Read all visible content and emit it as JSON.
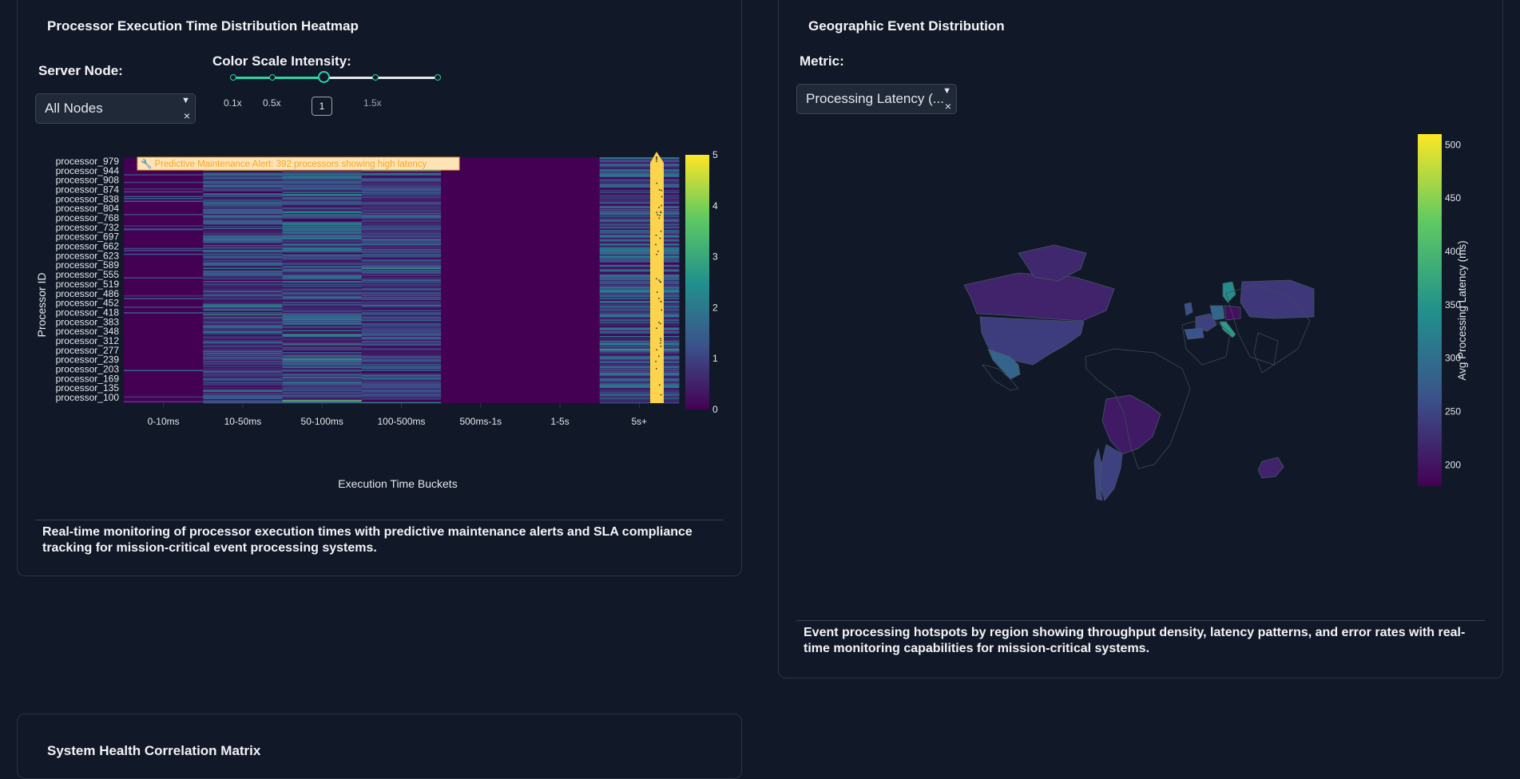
{
  "heatmap_panel": {
    "title": "Processor Execution Time Distribution Heatmap",
    "server_node_label": "Server Node:",
    "server_node_value": "All Nodes",
    "color_scale_label": "Color Scale Intensity:",
    "slider_marks": [
      "0.1x",
      "0.5x",
      "1.5x"
    ],
    "slider_value": "1",
    "alert_text": "🔧 Predictive Maintenance Alert: 392 processors showing high latency",
    "description": "Real-time monitoring of processor execution times with predictive maintenance alerts and SLA compliance tracking for mission-critical event processing systems."
  },
  "geo_panel": {
    "title": "Geographic Event Distribution",
    "metric_label": "Metric:",
    "metric_value": "Processing Latency (...",
    "description": "Event processing hotspots by region showing throughput density, latency patterns, and error rates with real-time monitoring capabilities for mission-critical systems."
  },
  "correlation_panel": {
    "title": "System Health Correlation Matrix"
  },
  "chart_data": [
    {
      "type": "heatmap",
      "xlabel": "Execution Time Buckets",
      "ylabel": "Processor ID",
      "categories": [
        "0-10ms",
        "10-50ms",
        "50-100ms",
        "100-500ms",
        "500ms-1s",
        "1-5s",
        "5s+"
      ],
      "y_tick_labels": [
        "processor_979",
        "processor_944",
        "processor_908",
        "processor_874",
        "processor_838",
        "processor_804",
        "processor_768",
        "processor_732",
        "processor_697",
        "processor_662",
        "processor_623",
        "processor_589",
        "processor_555",
        "processor_519",
        "processor_486",
        "processor_452",
        "processor_418",
        "processor_383",
        "processor_348",
        "processor_312",
        "processor_277",
        "processor_239",
        "processor_203",
        "processor_169",
        "processor_135",
        "processor_100"
      ],
      "colorbar": {
        "min": 0,
        "max": 5,
        "ticks": [
          "5",
          "4",
          "3",
          "2",
          "1",
          "0"
        ]
      },
      "column_mean_intensity": [
        0.15,
        1.2,
        1.3,
        1.1,
        0.0,
        0.0,
        1.4
      ],
      "colorscale": [
        "#440154",
        "#3b528b",
        "#21918c",
        "#5ec962",
        "#fde725"
      ]
    },
    {
      "type": "choropleth",
      "colorbar_title": "Avg Processing Latency (ms)",
      "colorbar": {
        "min": 180,
        "max": 510,
        "ticks": [
          "500",
          "450",
          "400",
          "350",
          "300",
          "250",
          "200"
        ]
      },
      "regions": [
        {
          "name": "USA",
          "value": 240
        },
        {
          "name": "Canada",
          "value": 215
        },
        {
          "name": "Mexico",
          "value": 285
        },
        {
          "name": "Brazil",
          "value": 205
        },
        {
          "name": "Argentina",
          "value": 245
        },
        {
          "name": "Chile",
          "value": 250
        },
        {
          "name": "South Africa",
          "value": 215
        },
        {
          "name": "UK",
          "value": 260
        },
        {
          "name": "France",
          "value": 245
        },
        {
          "name": "Germany",
          "value": 290
        },
        {
          "name": "Italy",
          "value": 360
        },
        {
          "name": "Spain",
          "value": 265
        },
        {
          "name": "Poland",
          "value": 195
        },
        {
          "name": "Sweden",
          "value": 340
        },
        {
          "name": "Russia",
          "value": 235
        },
        {
          "name": "Greenland",
          "value": 220
        }
      ]
    }
  ]
}
